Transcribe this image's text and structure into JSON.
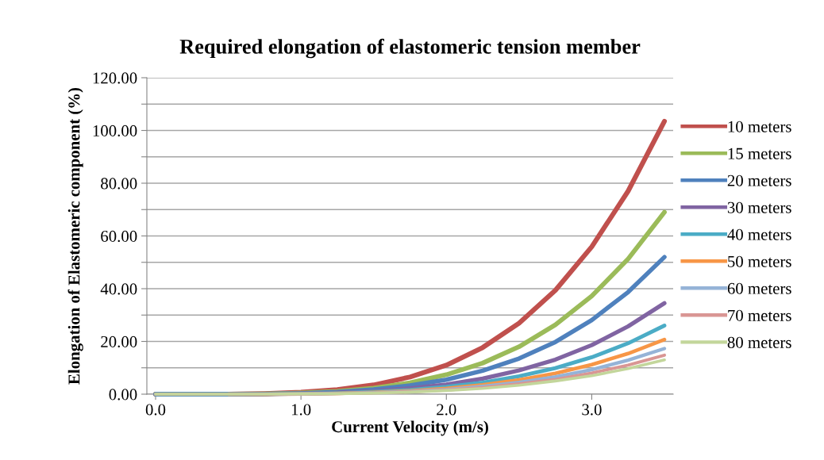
{
  "chart_data": {
    "type": "line",
    "title": "Required elongation of elastomeric tension member",
    "xlabel": "Current Velocity (m/s)",
    "ylabel": "Elongation of Elastomeric component (%)",
    "x": [
      0,
      0.25,
      0.5,
      0.75,
      1.0,
      1.25,
      1.5,
      1.75,
      2.0,
      2.25,
      2.5,
      2.75,
      3.0,
      3.25,
      3.5
    ],
    "xlim": [
      -0.06,
      3.56
    ],
    "xticks": [
      {
        "value": 0,
        "label": "0.0"
      },
      {
        "value": 1,
        "label": "1.0"
      },
      {
        "value": 2,
        "label": "2.0"
      },
      {
        "value": 3,
        "label": "3.0"
      }
    ],
    "ylim": [
      0,
      120
    ],
    "yticks": [
      {
        "value": 0,
        "label": "0.00"
      },
      {
        "value": 10,
        "label": null
      },
      {
        "value": 20,
        "label": "20.00"
      },
      {
        "value": 30,
        "label": null
      },
      {
        "value": 40,
        "label": "40.00"
      },
      {
        "value": 50,
        "label": null
      },
      {
        "value": 60,
        "label": "60.00"
      },
      {
        "value": 70,
        "label": null
      },
      {
        "value": 80,
        "label": "80.00"
      },
      {
        "value": 90,
        "label": null
      },
      {
        "value": 100,
        "label": "100.00"
      },
      {
        "value": 110,
        "label": null
      },
      {
        "value": 120,
        "label": "120.00"
      }
    ],
    "grid": "y",
    "legend": "right",
    "marker": "none",
    "line_style": "solid",
    "series": [
      {
        "name": "10 meters",
        "color": "#c0504d",
        "values": [
          0,
          0,
          0,
          0.2,
          0.7,
          1.7,
          3.5,
          6.5,
          11.0,
          17.7,
          26.9,
          39.4,
          55.9,
          77.0,
          103.5
        ]
      },
      {
        "name": "15 meters",
        "color": "#9bbb59",
        "values": [
          0,
          0,
          0,
          0.1,
          0.5,
          1.1,
          2.3,
          4.3,
          7.4,
          11.8,
          18.0,
          26.3,
          37.2,
          51.3,
          69.0
        ]
      },
      {
        "name": "20 meters",
        "color": "#4f81bd",
        "values": [
          0,
          0,
          0,
          0.1,
          0.3,
          0.8,
          1.8,
          3.3,
          5.5,
          8.9,
          13.5,
          19.8,
          28.1,
          38.7,
          52.0
        ]
      },
      {
        "name": "30 meters",
        "color": "#8064a2",
        "values": [
          0,
          0,
          0,
          0.1,
          0.2,
          0.6,
          1.2,
          2.2,
          3.7,
          5.9,
          9.0,
          13.1,
          18.6,
          25.7,
          34.5
        ]
      },
      {
        "name": "40 meters",
        "color": "#4bacc6",
        "values": [
          0,
          0,
          0,
          0.1,
          0.2,
          0.4,
          0.9,
          1.6,
          2.8,
          4.4,
          6.8,
          9.9,
          14.0,
          19.3,
          26.0
        ]
      },
      {
        "name": "50 meters",
        "color": "#f79646",
        "values": [
          null,
          null,
          0,
          0,
          0.1,
          0.3,
          0.7,
          1.3,
          2.2,
          3.5,
          5.4,
          7.9,
          11.2,
          15.4,
          20.7
        ]
      },
      {
        "name": "60 meters",
        "color": "#95b3d7",
        "values": [
          0,
          0,
          0,
          0,
          0.1,
          0.3,
          0.6,
          1.1,
          1.8,
          3.0,
          4.5,
          6.6,
          9.3,
          12.9,
          17.3
        ]
      },
      {
        "name": "70 meters",
        "color": "#d99694",
        "values": [
          0,
          0,
          0,
          0,
          0.1,
          0.2,
          0.5,
          0.9,
          1.6,
          2.5,
          3.9,
          5.6,
          8.0,
          11.0,
          14.8
        ]
      },
      {
        "name": "80 meters",
        "color": "#c3d69b",
        "values": [
          0,
          0,
          0,
          0,
          0.1,
          0.2,
          0.4,
          0.8,
          1.4,
          2.2,
          3.4,
          5.0,
          7.0,
          9.7,
          13.0
        ]
      }
    ]
  }
}
